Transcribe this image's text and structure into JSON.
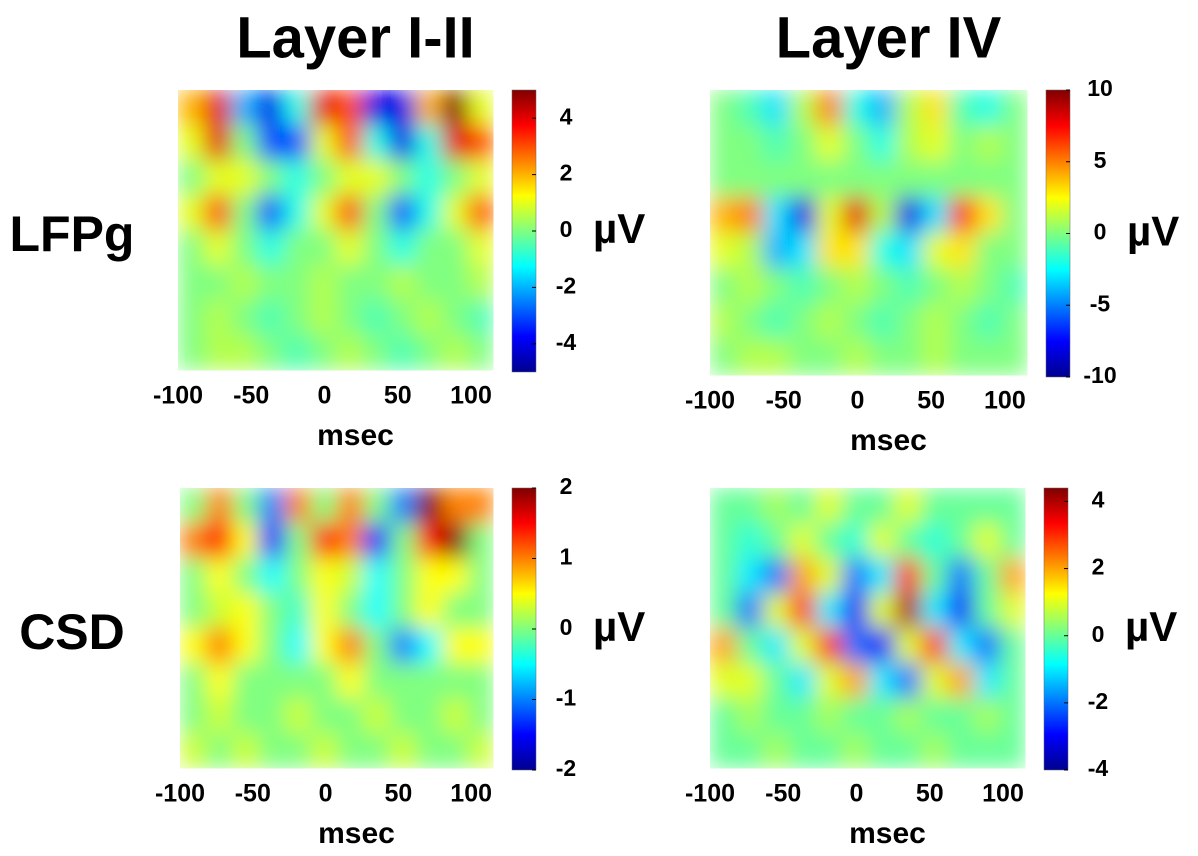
{
  "chart_data": [
    {
      "type": "heatmap",
      "title": "Layer I-II",
      "row_label": "LFPg",
      "xlabel": "msec",
      "colorbar_label": "µV",
      "xlim": [
        -100,
        115
      ],
      "xticks": [
        -100,
        -50,
        0,
        50,
        100
      ],
      "zlim": [
        -5,
        5
      ],
      "zticks": [
        -4,
        -2,
        0,
        2,
        4
      ],
      "colormap": "jet",
      "x": [
        -91,
        -73,
        -55,
        -37,
        -19,
        -1,
        17,
        35,
        53,
        71,
        89,
        107
      ],
      "values": [
        [
          2,
          4,
          -2,
          -4,
          -1,
          4,
          3,
          -4,
          -4,
          2,
          5,
          1
        ],
        [
          1,
          4,
          0,
          -3,
          -3,
          1,
          3,
          -1,
          -4,
          -1,
          4,
          3
        ],
        [
          0,
          1,
          1,
          0,
          -1,
          0,
          1,
          1,
          0,
          -1,
          0,
          1
        ],
        [
          1,
          3,
          0,
          -3,
          -1,
          1,
          3,
          0,
          -3,
          -1,
          1,
          3
        ],
        [
          0,
          1,
          0,
          -1,
          0,
          0,
          1,
          0,
          -1,
          0,
          0,
          1
        ],
        [
          0,
          0,
          0.5,
          0,
          0,
          0.5,
          0,
          0,
          0.5,
          0,
          0,
          0.5
        ],
        [
          0,
          0.5,
          0,
          -0.5,
          0,
          0.5,
          0,
          -0.5,
          0,
          0.5,
          0,
          -0.5
        ],
        [
          0,
          0.5,
          0.5,
          0,
          -0.5,
          0,
          0.5,
          0,
          -0.5,
          0,
          0.5,
          0
        ]
      ]
    },
    {
      "type": "heatmap",
      "title": "Layer IV",
      "xlabel": "msec",
      "colorbar_label": "µV",
      "xlim": [
        -100,
        115
      ],
      "xticks": [
        -100,
        -50,
        0,
        50,
        100
      ],
      "zlim": [
        -10,
        10
      ],
      "zticks": [
        -10,
        -5,
        0,
        5,
        10
      ],
      "colormap": "jet",
      "x": [
        -91,
        -73,
        -55,
        -37,
        -19,
        -1,
        17,
        35,
        53,
        71,
        89,
        107
      ],
      "values": [
        [
          0,
          -1,
          -3,
          1,
          5,
          -2,
          -4,
          1,
          3,
          -1,
          -2,
          0
        ],
        [
          0,
          0,
          -1,
          0,
          2,
          0,
          -2,
          1,
          2,
          0,
          1,
          0
        ],
        [
          0,
          0,
          0,
          0,
          0,
          0,
          0,
          0,
          0,
          0,
          0,
          0
        ],
        [
          4,
          5,
          -3,
          -8,
          2,
          8,
          1,
          -8,
          -3,
          7,
          3,
          0
        ],
        [
          2,
          1,
          -4,
          -3,
          3,
          3,
          -2,
          -3,
          2,
          3,
          0,
          0
        ],
        [
          0,
          1,
          0,
          -1,
          0,
          1,
          0,
          -1,
          0,
          1,
          0,
          -1
        ],
        [
          1,
          0,
          -1,
          0,
          1,
          0,
          -1,
          0,
          1,
          0,
          -1,
          0
        ],
        [
          0,
          1,
          1,
          0,
          0,
          1,
          0,
          0,
          1,
          0,
          0,
          0
        ]
      ]
    },
    {
      "type": "heatmap",
      "row_label": "CSD",
      "xlabel": "msec",
      "colorbar_label": "µV",
      "xlim": [
        -100,
        115
      ],
      "xticks": [
        -100,
        -50,
        0,
        50,
        100
      ],
      "zlim": [
        -2,
        2
      ],
      "zticks": [
        -2,
        -1,
        0,
        1,
        2
      ],
      "colormap": "jet",
      "x": [
        -91,
        -73,
        -55,
        -37,
        -19,
        -1,
        17,
        35,
        53,
        71,
        89,
        107
      ],
      "values": [
        [
          0,
          1,
          0,
          -1,
          1,
          0,
          1,
          0,
          -1,
          2,
          1,
          1
        ],
        [
          1,
          1.5,
          0.5,
          -1.5,
          0,
          1.5,
          1,
          -1.5,
          0,
          1.5,
          2,
          0
        ],
        [
          0,
          0.5,
          0,
          -0.5,
          0,
          0.5,
          0.3,
          -0.5,
          0,
          0.5,
          0.5,
          0
        ],
        [
          0,
          0.3,
          0.5,
          0,
          -0.3,
          0.5,
          0,
          -0.5,
          0,
          0.5,
          0,
          0
        ],
        [
          0.5,
          1,
          0.5,
          0,
          -0.5,
          0.5,
          1,
          0,
          -1,
          -0.5,
          0.5,
          0.5
        ],
        [
          0,
          0.5,
          0,
          0,
          0,
          0,
          0.5,
          0,
          0,
          0,
          0,
          0
        ],
        [
          0,
          0.3,
          0,
          0,
          0.3,
          0,
          0,
          0.3,
          0,
          0,
          0.3,
          0
        ],
        [
          0.3,
          0,
          0.3,
          0,
          0,
          0.3,
          0,
          0,
          0.3,
          0,
          0,
          0.3
        ]
      ]
    },
    {
      "type": "heatmap",
      "xlabel": "msec",
      "colorbar_label": "µV",
      "xlim": [
        -100,
        115
      ],
      "xticks": [
        -100,
        -50,
        0,
        50,
        100
      ],
      "zlim": [
        -4,
        4.4
      ],
      "zticks": [
        -4,
        -2,
        0,
        2,
        4
      ],
      "colormap": "jet",
      "x": [
        -91,
        -73,
        -55,
        -37,
        -19,
        -1,
        17,
        35,
        53,
        71,
        89,
        107
      ],
      "values": [
        [
          0,
          0,
          0.5,
          0,
          1,
          0,
          0,
          1,
          0,
          0,
          0,
          0
        ],
        [
          0,
          -0.5,
          0,
          1,
          0,
          -0.5,
          1,
          0,
          -0.5,
          0,
          1,
          0
        ],
        [
          0,
          -1,
          -2,
          2,
          1,
          -2,
          -1,
          3,
          0,
          -2,
          0,
          2
        ],
        [
          0,
          -2,
          1,
          3,
          -1,
          -3,
          1,
          4,
          -1,
          -3,
          0,
          1
        ],
        [
          2,
          0,
          -1,
          1,
          3,
          -2,
          -3,
          1,
          3,
          -1,
          -2,
          0
        ],
        [
          1,
          1,
          0,
          -1,
          1,
          2,
          -1,
          -2,
          1,
          2,
          -1,
          0
        ],
        [
          0,
          0.5,
          0,
          0,
          0.5,
          0,
          0,
          0.5,
          0,
          0,
          0.5,
          0
        ],
        [
          0,
          0,
          0.5,
          0,
          0,
          0.5,
          0,
          0,
          0.5,
          0,
          0,
          0
        ]
      ]
    }
  ]
}
